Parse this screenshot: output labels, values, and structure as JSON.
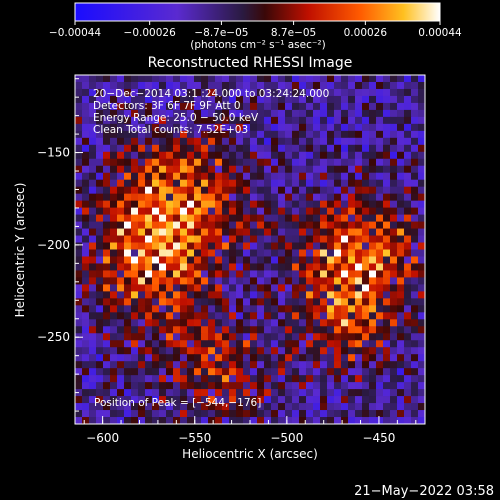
{
  "chart_data": {
    "type": "heatmap",
    "title": "Reconstructed RHESSI Image",
    "xlabel": "Heliocentric X (arcsec)",
    "ylabel": "Heliocentric Y (arcsec)",
    "xlim": [
      -615,
      -425
    ],
    "ylim": [
      -297,
      -108
    ],
    "xticks": [
      -600,
      -550,
      -500,
      -450
    ],
    "yticks": [
      -150,
      -200,
      -250
    ],
    "xtick_labels": [
      "−600",
      "−550",
      "−500",
      "−450"
    ],
    "ytick_labels": [
      "−150",
      "−200",
      "−250"
    ],
    "colorbar": {
      "range": [
        -0.00044,
        0.00044
      ],
      "ticks": [
        -0.00044,
        -0.00026,
        -8.7e-05,
        8.7e-05,
        0.00026,
        0.00044
      ],
      "tick_labels": [
        "−0.00044",
        "−0.00026",
        "−8.7e−05",
        "8.7e−05",
        "0.00026",
        "0.00044"
      ],
      "units": "(photons cm⁻² s⁻¹ asec⁻²)"
    },
    "annotations": [
      "20−Dec−2014 03:1 :24.000 to 03:24:24.000",
      "Detectors: 3F 6F 7F 9F  Att 0",
      "Energy Range: 25.0 − 50.0 keV",
      "Clean     Total counts: 7.52E+03"
    ],
    "peak_label": "Position of Peak = [−544,−176]",
    "peak": [
      -544,
      -176
    ],
    "sources": [
      {
        "x": -560,
        "y": -178,
        "sigma": 26,
        "amp": 0.95
      },
      {
        "x": -578,
        "y": -215,
        "sigma": 22,
        "amp": 0.6
      },
      {
        "x": -462,
        "y": -205,
        "sigma": 22,
        "amp": 0.95
      },
      {
        "x": -468,
        "y": -245,
        "sigma": 18,
        "amp": 0.55
      },
      {
        "x": -540,
        "y": -265,
        "sigma": 22,
        "amp": 0.55
      }
    ],
    "timestamp": "21−May−2022 03:58"
  }
}
